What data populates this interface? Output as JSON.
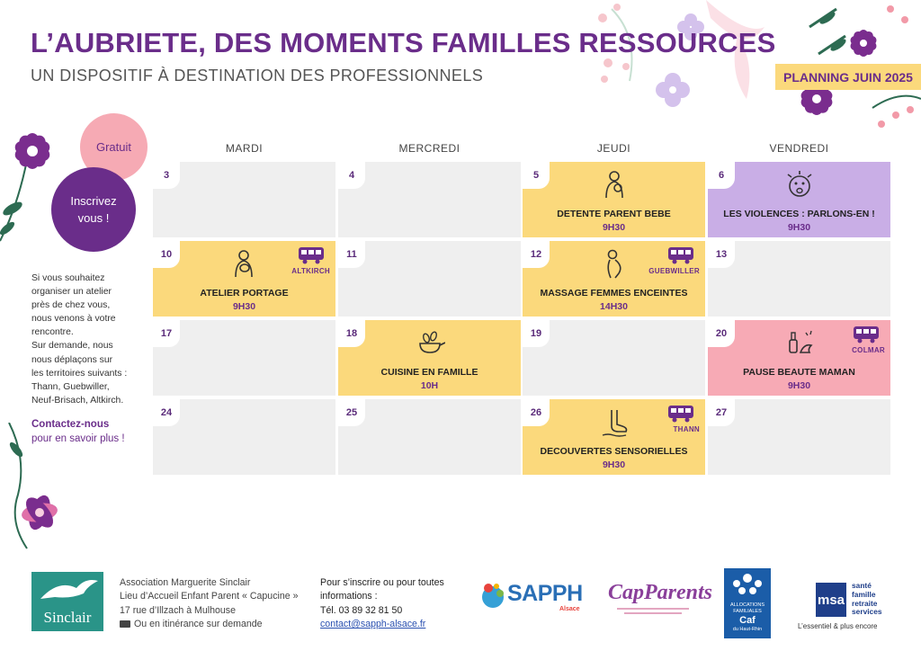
{
  "header": {
    "title": "L’AUBRIETE, DES MOMENTS FAMILLES RESSOURCES",
    "subtitle": "UN DISPOSITIF À DESTINATION DES PROFESSIONNELS",
    "planning": "PLANNING JUIN 2025"
  },
  "badges": {
    "gratuit": "Gratuit",
    "inscrivez": "Inscrivez vous !"
  },
  "sidebar": {
    "text": "Si vous souhaitez\norganiser un atelier\nprès de chez vous,\nnous venons à votre\nrencontre.\nSur demande, nous\nnous déplaçons sur\nles territoires suivants :\nThann, Guebwiller,\nNeuf-Brisach, Altkirch.",
    "contact_line1": "Contactez-nous",
    "contact_line2": "pour en savoir plus !"
  },
  "calendar": {
    "days": [
      "MARDI",
      "MERCREDI",
      "JEUDI",
      "VENDREDI"
    ],
    "weeks": [
      [
        {
          "day": "3"
        },
        {
          "day": "4"
        },
        {
          "day": "5",
          "title": "DETENTE PARENT BEBE",
          "time": "9H30",
          "color": "yellow",
          "icon": "parent-baby-icon"
        },
        {
          "day": "6",
          "title": "LES VIOLENCES : PARLONS-EN !",
          "time": "9H30",
          "color": "purple",
          "icon": "shouting-face-icon"
        }
      ],
      [
        {
          "day": "10",
          "title": "ATELIER PORTAGE",
          "time": "9H30",
          "color": "yellow",
          "icon": "babywearing-icon",
          "location": "ALTKIRCH"
        },
        {
          "day": "11"
        },
        {
          "day": "12",
          "title": "MASSAGE FEMMES ENCEINTES",
          "time": "14H30",
          "color": "yellow",
          "icon": "pregnant-woman-icon",
          "location": "GUEBWILLER"
        },
        {
          "day": "13"
        }
      ],
      [
        {
          "day": "17"
        },
        {
          "day": "18",
          "title": "CUISINE EN FAMILLE",
          "time": "10H",
          "color": "yellow",
          "icon": "cooking-pan-icon"
        },
        {
          "day": "19"
        },
        {
          "day": "20",
          "title": "PAUSE BEAUTE MAMAN",
          "time": "9H30",
          "color": "pink",
          "icon": "nail-polish-icon",
          "location": "COLMAR"
        }
      ],
      [
        {
          "day": "24"
        },
        {
          "day": "25"
        },
        {
          "day": "26",
          "title": "DECOUVERTES SENSORIELLES",
          "time": "9H30",
          "color": "yellow",
          "icon": "foot-icon",
          "location": "THANN"
        },
        {
          "day": "27"
        }
      ]
    ]
  },
  "footer": {
    "logo_label": "Sinclair",
    "assoc_line1": "Association Marguerite Sinclair",
    "assoc_line2": "Lieu d’Accueil Enfant Parent « Capucine »",
    "assoc_line3": "17 rue d’Illzach à Mulhouse",
    "assoc_line4": "Ou en itinérance sur demande",
    "inscr_line1": "Pour s’inscrire ou pour toutes",
    "inscr_line2": "informations :",
    "phone": "Tél. 03 89 32 81 50",
    "email": "contact@sapph-alsace.fr"
  },
  "partners": {
    "sapph": "SAPPH",
    "sapph_sub": "Alsace",
    "capparents": "CapParents",
    "caf_line1": "ALLOCATIONS",
    "caf_line2": "FAMILIALES",
    "caf_line3": "Caf",
    "caf_line4": "du Haut-Rhin",
    "msa_logo": "msa",
    "msa_line1": "santé",
    "msa_line2": "famille",
    "msa_line3": "retraite",
    "msa_line4": "services",
    "msa_tagline": "L’essentiel & plus encore"
  },
  "colors": {
    "purple": "#6a2d8a",
    "yellow": "#fbd97c",
    "lavender": "#c9aee6",
    "pink": "#f7aab5",
    "grey": "#efefef"
  }
}
